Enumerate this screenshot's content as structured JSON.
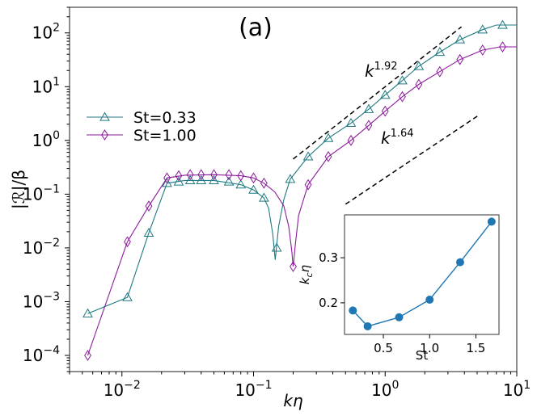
{
  "chart_data": [
    {
      "type": "line",
      "panel_label": "(a)",
      "xlabel": "kη",
      "ylabel": "|ℛ|/β",
      "xscale": "log",
      "yscale": "log",
      "xlim": [
        0.004,
        10
      ],
      "ylim": [
        5e-05,
        300
      ],
      "x_ticks": [
        {
          "exp": -2,
          "label_base": "10",
          "label_exp": "−2"
        },
        {
          "exp": -1,
          "label_base": "10",
          "label_exp": "−1"
        },
        {
          "exp": 0,
          "label_base": "10",
          "label_exp": "0"
        },
        {
          "exp": 1,
          "label_base": "10",
          "label_exp": "1"
        }
      ],
      "y_ticks": [
        {
          "exp": -4,
          "label_base": "10",
          "label_exp": "−4"
        },
        {
          "exp": -3,
          "label_base": "10",
          "label_exp": "−3"
        },
        {
          "exp": -2,
          "label_base": "10",
          "label_exp": "−2"
        },
        {
          "exp": -1,
          "label_base": "10",
          "label_exp": "−1"
        },
        {
          "exp": 0,
          "label_base": "10",
          "label_exp": "0"
        },
        {
          "exp": 1,
          "label_base": "10",
          "label_exp": "1"
        },
        {
          "exp": 2,
          "label_base": "10",
          "label_exp": "2"
        }
      ],
      "series": [
        {
          "name": "St=0.33",
          "color": "#1f7a80",
          "marker": "triangle",
          "points": [
            [
              0.0055,
              0.0006
            ],
            [
              0.011,
              0.0012
            ],
            [
              0.016,
              0.019
            ],
            [
              0.022,
              0.16
            ],
            [
              0.027,
              0.17
            ],
            [
              0.033,
              0.18
            ],
            [
              0.04,
              0.18
            ],
            [
              0.05,
              0.18
            ],
            [
              0.065,
              0.17
            ],
            [
              0.08,
              0.15
            ],
            [
              0.1,
              0.12
            ],
            [
              0.12,
              0.085
            ],
            [
              0.15,
              0.01
            ],
            [
              0.19,
              0.19
            ],
            [
              0.26,
              0.5
            ],
            [
              0.37,
              1.1
            ],
            [
              0.55,
              2.1
            ],
            [
              0.75,
              3.8
            ],
            [
              1.0,
              7.0
            ],
            [
              1.35,
              13
            ],
            [
              1.8,
              24
            ],
            [
              2.6,
              44
            ],
            [
              3.7,
              75
            ],
            [
              5.5,
              115
            ],
            [
              7.8,
              140
            ]
          ],
          "curve": [
            [
              0.0055,
              0.0006
            ],
            [
              0.011,
              0.0012
            ],
            [
              0.016,
              0.019
            ],
            [
              0.022,
              0.16
            ],
            [
              0.03,
              0.18
            ],
            [
              0.05,
              0.18
            ],
            [
              0.08,
              0.15
            ],
            [
              0.1,
              0.12
            ],
            [
              0.12,
              0.085
            ],
            [
              0.13,
              0.055
            ],
            [
              0.14,
              0.018
            ],
            [
              0.146,
              0.006
            ],
            [
              0.155,
              0.025
            ],
            [
              0.17,
              0.08
            ],
            [
              0.19,
              0.19
            ],
            [
              0.26,
              0.5
            ],
            [
              0.37,
              1.1
            ],
            [
              0.55,
              2.1
            ],
            [
              0.75,
              3.8
            ],
            [
              1.0,
              7.0
            ],
            [
              1.35,
              13
            ],
            [
              1.8,
              24
            ],
            [
              2.6,
              44
            ],
            [
              3.7,
              75
            ],
            [
              5.5,
              115
            ],
            [
              7.0,
              140
            ],
            [
              10,
              140
            ]
          ]
        },
        {
          "name": "St=1.00",
          "color": "#8b1a9b",
          "marker": "diamond",
          "points": [
            [
              0.0055,
              0.0001
            ],
            [
              0.011,
              0.013
            ],
            [
              0.016,
              0.06
            ],
            [
              0.022,
              0.2
            ],
            [
              0.027,
              0.22
            ],
            [
              0.033,
              0.23
            ],
            [
              0.04,
              0.23
            ],
            [
              0.05,
              0.23
            ],
            [
              0.065,
              0.23
            ],
            [
              0.08,
              0.22
            ],
            [
              0.1,
              0.2
            ],
            [
              0.12,
              0.16
            ],
            [
              0.2,
              0.0045
            ],
            [
              0.26,
              0.15
            ],
            [
              0.37,
              0.5
            ],
            [
              0.55,
              1.0
            ],
            [
              0.75,
              1.9
            ],
            [
              1.0,
              3.5
            ],
            [
              1.35,
              6.5
            ],
            [
              1.8,
              11
            ],
            [
              2.6,
              19
            ],
            [
              3.7,
              32
            ],
            [
              5.5,
              48
            ],
            [
              7.8,
              55
            ]
          ],
          "curve": [
            [
              0.0055,
              0.0001
            ],
            [
              0.011,
              0.013
            ],
            [
              0.016,
              0.06
            ],
            [
              0.022,
              0.2
            ],
            [
              0.03,
              0.225
            ],
            [
              0.05,
              0.23
            ],
            [
              0.08,
              0.22
            ],
            [
              0.1,
              0.2
            ],
            [
              0.12,
              0.16
            ],
            [
              0.145,
              0.11
            ],
            [
              0.17,
              0.06
            ],
            [
              0.185,
              0.025
            ],
            [
              0.195,
              0.009
            ],
            [
              0.2,
              0.0045
            ],
            [
              0.208,
              0.012
            ],
            [
              0.22,
              0.04
            ],
            [
              0.26,
              0.15
            ],
            [
              0.37,
              0.5
            ],
            [
              0.55,
              1.0
            ],
            [
              0.75,
              1.9
            ],
            [
              1.0,
              3.5
            ],
            [
              1.35,
              6.5
            ],
            [
              1.8,
              11
            ],
            [
              2.6,
              19
            ],
            [
              3.7,
              32
            ],
            [
              5.5,
              48
            ],
            [
              7.5,
              55
            ],
            [
              10,
              55
            ]
          ]
        }
      ],
      "reference_lines": [
        {
          "label_base": "k",
          "label_exp": "1.92",
          "x": [
            0.2,
            3.8
          ],
          "y": [
            0.45,
            130
          ],
          "position": "upper"
        },
        {
          "label_base": "k",
          "label_exp": "1.64",
          "x": [
            0.5,
            5.2
          ],
          "y": [
            0.065,
            3.0
          ],
          "position": "lower"
        }
      ],
      "legend": {
        "placement": "center-left"
      }
    },
    {
      "type": "line",
      "role": "inset",
      "xlabel": "St",
      "ylabel": "k_cη",
      "xlim": [
        0.08,
        1.75
      ],
      "ylim": [
        0.13,
        0.395
      ],
      "x_ticks": [
        "0.5",
        "1.0",
        "1.5"
      ],
      "x_tick_values": [
        0.5,
        1.0,
        1.5
      ],
      "y_ticks": [
        "0.2",
        "0.3"
      ],
      "y_tick_values": [
        0.2,
        0.3
      ],
      "color": "#1f77b4",
      "x": [
        0.17,
        0.33,
        0.67,
        1.0,
        1.33,
        1.67
      ],
      "y": [
        0.183,
        0.148,
        0.168,
        0.207,
        0.29,
        0.38
      ]
    }
  ]
}
